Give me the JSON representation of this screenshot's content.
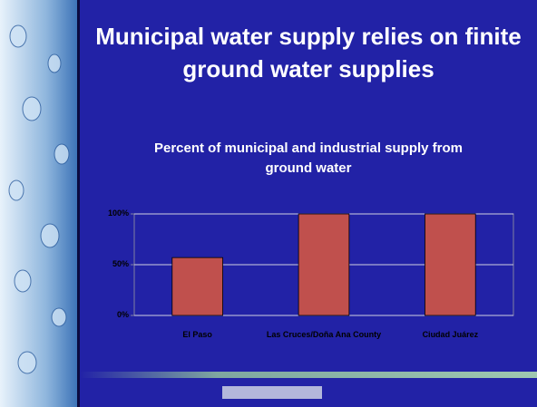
{
  "chart_data": {
    "type": "bar",
    "title": "Municipal water supply relies on finite ground water supplies",
    "subtitle": "Percent of municipal and industrial supply from ground water",
    "categories": [
      "El Paso",
      "Las Cruces/Doña Ana County",
      "Ciudad Juárez"
    ],
    "values": [
      57,
      100,
      100
    ],
    "color": "#c0504d",
    "ylim": [
      0,
      100
    ],
    "yticks": [
      {
        "value": 0,
        "label": "0%"
      },
      {
        "value": 50,
        "label": "50%"
      },
      {
        "value": 100,
        "label": "100%"
      }
    ],
    "grid": true
  }
}
